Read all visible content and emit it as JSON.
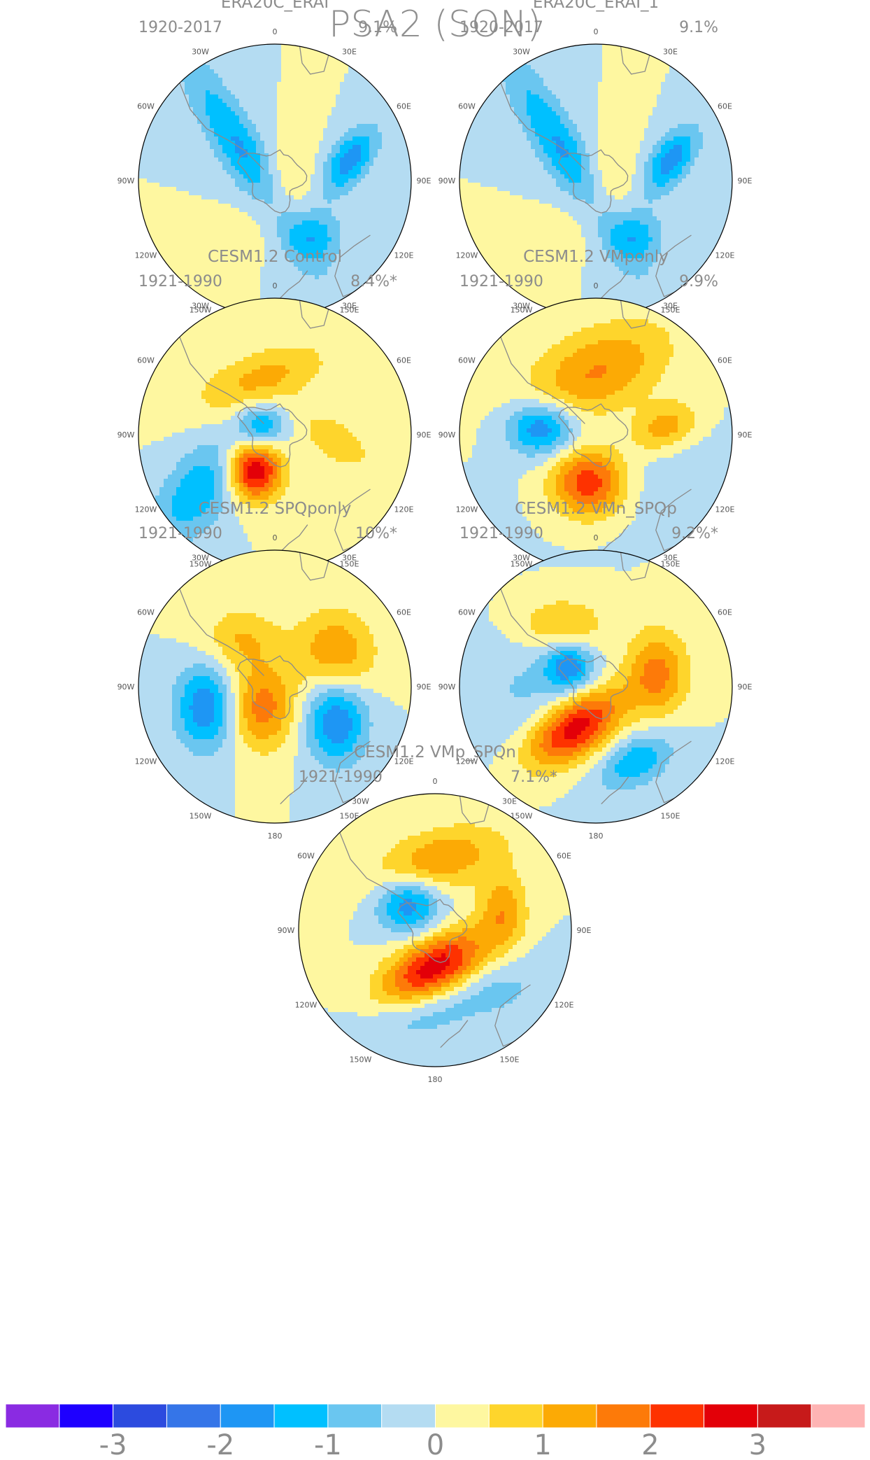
{
  "title": "PSA2 (SON)",
  "panels": [
    {
      "title": "ERA20C_ERAI",
      "period": "1920-2017",
      "variance": "9.1%",
      "pattern": [
        [
          -0.2,
          0.15,
          0.12,
          0.6,
          0.55,
          -1.6
        ],
        [
          0.05,
          -0.22,
          0.17,
          0.18,
          0.65,
          0.7
        ],
        [
          0.55,
          0.15,
          0.2,
          0.1,
          0.95,
          -1.8
        ],
        [
          0.3,
          -0.4,
          0.14,
          0.14,
          0.45,
          -1.2
        ],
        [
          0.05,
          0.05,
          0.2,
          0.14,
          1.0,
          0.5
        ]
      ]
    },
    {
      "title": "ERA20C_ERAI_1",
      "period": "1920-2017",
      "variance": "9.1%",
      "pattern": [
        [
          -0.2,
          0.15,
          0.12,
          0.6,
          0.55,
          -1.6
        ],
        [
          0.05,
          -0.22,
          0.17,
          0.18,
          0.65,
          0.7
        ],
        [
          0.55,
          0.15,
          0.2,
          0.1,
          0.95,
          -1.8
        ],
        [
          0.3,
          -0.4,
          0.14,
          0.14,
          0.45,
          -1.2
        ],
        [
          0.05,
          0.05,
          0.2,
          0.14,
          1.0,
          0.5
        ]
      ]
    },
    {
      "title": "CESM1.2 Control",
      "period": "1921-1990",
      "variance": "8.4%*",
      "pattern": [
        [
          -0.1,
          0.4,
          0.35,
          0.15,
          0.35,
          1.2
        ],
        [
          0.45,
          -0.05,
          0.2,
          0.1,
          -0.6,
          1.0
        ],
        [
          -0.1,
          0.05,
          0.12,
          0.12,
          0.0,
          -1.6
        ],
        [
          -0.15,
          -0.25,
          0.14,
          0.16,
          0.0,
          3.2
        ],
        [
          -0.55,
          -0.4,
          0.35,
          0.17,
          0.9,
          -1.4
        ]
      ]
    },
    {
      "title": "CESM1.2 VMponly",
      "period": "1921-1990",
      "variance": "9.9%",
      "pattern": [
        [
          0.0,
          0.45,
          0.4,
          0.22,
          0.45,
          1.55
        ],
        [
          0.5,
          0.05,
          0.18,
          0.12,
          0.4,
          1.4
        ],
        [
          -0.4,
          0.05,
          0.18,
          0.14,
          0.0,
          -2.1
        ],
        [
          -0.05,
          -0.35,
          0.2,
          0.18,
          0.0,
          2.6
        ],
        [
          0.3,
          -0.3,
          0.5,
          0.3,
          0.0,
          -0.4
        ]
      ]
    },
    {
      "title": "CESM1.2 SPQponly",
      "period": "1921-1990",
      "variance": "10%*",
      "pattern": [
        [
          -0.25,
          0.35,
          0.2,
          0.16,
          0.0,
          1.0
        ],
        [
          0.45,
          0.25,
          0.2,
          0.22,
          0.3,
          1.5
        ],
        [
          -0.5,
          -0.15,
          0.16,
          0.22,
          0.0,
          -2.0
        ],
        [
          0.45,
          -0.25,
          0.16,
          0.22,
          0.0,
          -2.0
        ],
        [
          -0.1,
          -0.15,
          0.18,
          0.22,
          0.0,
          1.8
        ]
      ]
    },
    {
      "title": "CESM1.2 VMn_SPQp",
      "period": "1921-1990",
      "variance": "9.2%*",
      "pattern": [
        [
          -0.25,
          0.45,
          0.25,
          0.15,
          0.0,
          1.1
        ],
        [
          0.45,
          0.1,
          0.16,
          0.22,
          0.0,
          1.7
        ],
        [
          -0.2,
          0.15,
          0.12,
          0.12,
          0.0,
          -1.7
        ],
        [
          -0.15,
          -0.3,
          0.28,
          0.15,
          0.6,
          3.1
        ],
        [
          0.3,
          -0.55,
          0.2,
          0.12,
          0.5,
          -1.4
        ],
        [
          -0.4,
          -0.05,
          0.4,
          0.35,
          0.0,
          -0.6
        ]
      ]
    },
    {
      "title": "CESM1.2 VMp_SPQn",
      "period": "1921-1990",
      "variance": "7.1%*",
      "pattern": [
        [
          0.0,
          0.5,
          0.35,
          0.16,
          0.3,
          1.5
        ],
        [
          0.5,
          0.15,
          0.12,
          0.2,
          0.0,
          1.3
        ],
        [
          -0.2,
          0.2,
          0.17,
          0.15,
          0.0,
          -2.0
        ],
        [
          0.0,
          -0.28,
          0.3,
          0.15,
          0.5,
          3.0
        ],
        [
          -0.1,
          -0.6,
          0.35,
          0.14,
          0.3,
          -0.9
        ],
        [
          0.5,
          -0.4,
          0.3,
          0.2,
          0.0,
          -0.5
        ]
      ]
    }
  ],
  "colorbar": {
    "colors": [
      "#8a2be2",
      "#1e00ff",
      "#2c4bdf",
      "#3575e8",
      "#1e96f4",
      "#00c0ff",
      "#6ac6f0",
      "#b4dcf2",
      "#fef7a0",
      "#fed52c",
      "#fcaa05",
      "#fd7a09",
      "#fe3200",
      "#e30008",
      "#c71a1a",
      "#feb4b4"
    ],
    "levels": [
      -3.5,
      -3,
      -2.5,
      -2,
      -1.5,
      -1,
      -0.5,
      0,
      0.5,
      1,
      1.5,
      2,
      2.5,
      3,
      3.5
    ],
    "tick_labels": [
      "-3",
      "-2",
      "-1",
      "0",
      "1",
      "2",
      "3"
    ]
  },
  "axis_labels": {
    "lon_labels": [
      "0",
      "30E",
      "60E",
      "90E",
      "120E",
      "150E",
      "180",
      "150W",
      "120W",
      "90W",
      "60W",
      "30W"
    ]
  }
}
